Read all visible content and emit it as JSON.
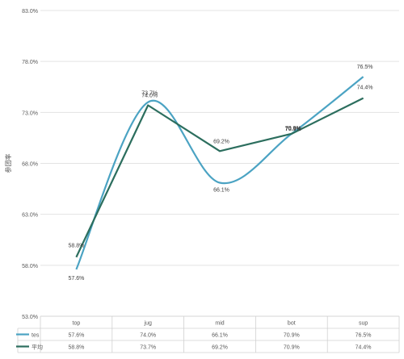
{
  "chart_data": {
    "type": "line",
    "title": "",
    "xlabel": "",
    "ylabel": "参团率",
    "ylim": [
      0.53,
      0.83
    ],
    "yticks": [
      0.53,
      0.58,
      0.63,
      0.68,
      0.73,
      0.78,
      0.83
    ],
    "ytick_labels": [
      "53.0%",
      "58.0%",
      "63.0%",
      "68.0%",
      "73.0%",
      "78.0%",
      "83.0%"
    ],
    "grid": true,
    "legend_placement": "data-table",
    "categories": [
      "top",
      "jug",
      "mid",
      "bot",
      "sup"
    ],
    "series": [
      {
        "name": "tes",
        "color": "#4ba3c3",
        "smooth": true,
        "values": [
          0.576,
          0.74,
          0.661,
          0.709,
          0.765
        ],
        "point_labels": [
          "57.6%",
          "74.0%",
          "66.1%",
          "70.9%",
          "76.5%"
        ]
      },
      {
        "name": "平均",
        "color": "#2c6e5e",
        "smooth": false,
        "values": [
          0.588,
          0.737,
          0.692,
          0.709,
          0.744
        ],
        "point_labels": [
          "58.8%",
          "73.7%",
          "69.2%",
          "70.9%",
          "74.4%"
        ]
      }
    ],
    "table_rows": [
      {
        "name": "tes",
        "cells": [
          "57.6%",
          "74.0%",
          "66.1%",
          "70.9%",
          "76.5%"
        ]
      },
      {
        "name": "平均",
        "cells": [
          "58.8%",
          "73.7%",
          "69.2%",
          "70.9%",
          "74.4%"
        ]
      }
    ]
  }
}
